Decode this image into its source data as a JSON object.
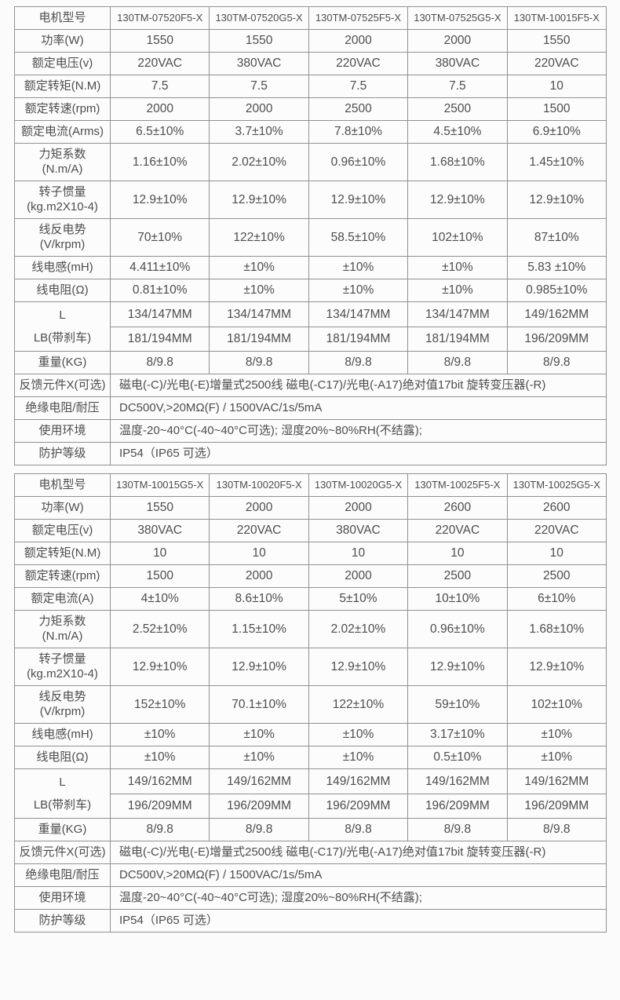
{
  "tables": [
    {
      "title": "spec-table-1",
      "header": {
        "label": "电机型号",
        "models": [
          "130TM-07520F5-X",
          "130TM-07520G5-X",
          "130TM-07525F5-X",
          "130TM-07525G5-X",
          "130TM-10015F5-X"
        ]
      },
      "rows": [
        {
          "type": "normal",
          "label": "功率(W)",
          "values": [
            "1550",
            "1550",
            "2000",
            "2000",
            "1550"
          ]
        },
        {
          "type": "normal",
          "label": "额定电压(v)",
          "values": [
            "220VAC",
            "380VAC",
            "220VAC",
            "380VAC",
            "220VAC"
          ]
        },
        {
          "type": "normal",
          "label": "额定转矩(N.M)",
          "values": [
            "7.5",
            "7.5",
            "7.5",
            "7.5",
            "10"
          ]
        },
        {
          "type": "normal",
          "label": "额定转速(rpm)",
          "values": [
            "2000",
            "2000",
            "2500",
            "2500",
            "1500"
          ]
        },
        {
          "type": "normal",
          "label": "额定电流(Arms)",
          "values": [
            "6.5±10%",
            "3.7±10%",
            "7.8±10%",
            "4.5±10%",
            "6.9±10%"
          ]
        },
        {
          "type": "normal",
          "label_lines": [
            "力矩系数",
            "(N.m/A)"
          ],
          "values": [
            "1.16±10%",
            "2.02±10%",
            "0.96±10%",
            "1.68±10%",
            "1.45±10%"
          ]
        },
        {
          "type": "normal",
          "label_lines": [
            "转子惯量",
            "(kg.m2X10-4)"
          ],
          "values": [
            "12.9±10%",
            "12.9±10%",
            "12.9±10%",
            "12.9±10%",
            "12.9±10%"
          ]
        },
        {
          "type": "normal",
          "label_lines": [
            "线反电势",
            "(V/krpm)"
          ],
          "values": [
            "70±10%",
            "122±10%",
            "58.5±10%",
            "102±10%",
            "87±10%"
          ]
        },
        {
          "type": "normal",
          "label": "线电感(mH)",
          "values": [
            "4.411±10%",
            "±10%",
            "±10%",
            "±10%",
            "5.83 ±10%"
          ]
        },
        {
          "type": "normal",
          "label": "线电阻(Ω)",
          "values": [
            "0.81±10%",
            "±10%",
            "±10%",
            "±10%",
            "0.985±10%"
          ]
        },
        {
          "type": "double",
          "label_lines": [
            "L",
            "LB(带刹车)"
          ],
          "values_top": [
            "134/147MM",
            "134/147MM",
            "134/147MM",
            "134/147MM",
            "149/162MM"
          ],
          "values_bottom": [
            "181/194MM",
            "181/194MM",
            "181/194MM",
            "181/194MM",
            "196/209MM"
          ]
        },
        {
          "type": "normal",
          "label": "重量(KG)",
          "values": [
            "8/9.8",
            "8/9.8",
            "8/9.8",
            "8/9.8",
            "8/9.8"
          ]
        },
        {
          "type": "span",
          "label": "反馈元件X(可选)",
          "value": "磁电(-C)/光电(-E)增量式2500线  磁电(-C17)/光电(-A17)绝对值17bit  旋转变压器(-R)"
        },
        {
          "type": "span",
          "label": "绝缘电阻/耐压",
          "value": "DC500V,>20MΩ(F) / 1500VAC/1s/5mA"
        },
        {
          "type": "span",
          "label": "使用环境",
          "value": "温度-20~40°C(-40~40°C可选); 湿度20%~80%RH(不结露);"
        },
        {
          "type": "span",
          "label": "防护等级",
          "value": "IP54（IP65 可选）"
        }
      ]
    },
    {
      "title": "spec-table-2",
      "header": {
        "label": "电机型号",
        "models": [
          "130TM-10015G5-X",
          "130TM-10020F5-X",
          "130TM-10020G5-X",
          "130TM-10025F5-X",
          "130TM-10025G5-X"
        ]
      },
      "rows": [
        {
          "type": "normal",
          "label": "功率(W)",
          "values": [
            "1550",
            "2000",
            "2000",
            "2600",
            "2600"
          ]
        },
        {
          "type": "normal",
          "label": "额定电压(v)",
          "values": [
            "380VAC",
            "220VAC",
            "380VAC",
            "220VAC",
            "220VAC"
          ]
        },
        {
          "type": "normal",
          "label": "额定转矩(N.M)",
          "values": [
            "10",
            "10",
            "10",
            "10",
            "10"
          ]
        },
        {
          "type": "normal",
          "label": "额定转速(rpm)",
          "values": [
            "1500",
            "2000",
            "2000",
            "2500",
            "2500"
          ]
        },
        {
          "type": "normal",
          "label": "额定电流(A)",
          "values": [
            "4±10%",
            "8.6±10%",
            "5±10%",
            "10±10%",
            "6±10%"
          ]
        },
        {
          "type": "normal",
          "label_lines": [
            "力矩系数",
            "(N.m/A)"
          ],
          "values": [
            "2.52±10%",
            "1.15±10%",
            "2.02±10%",
            "0.96±10%",
            "1.68±10%"
          ]
        },
        {
          "type": "normal",
          "label_lines": [
            "转子惯量",
            "(kg.m2X10-4)"
          ],
          "values": [
            "12.9±10%",
            "12.9±10%",
            "12.9±10%",
            "12.9±10%",
            "12.9±10%"
          ]
        },
        {
          "type": "normal",
          "label_lines": [
            "线反电势",
            "(V/krpm)"
          ],
          "values": [
            "152±10%",
            "70.1±10%",
            "122±10%",
            "59±10%",
            "102±10%"
          ]
        },
        {
          "type": "normal",
          "label": "线电感(mH)",
          "values": [
            "±10%",
            "±10%",
            "±10%",
            "3.17±10%",
            "±10%"
          ]
        },
        {
          "type": "normal",
          "label": "线电阻(Ω)",
          "values": [
            "±10%",
            "±10%",
            "±10%",
            "0.5±10%",
            "±10%"
          ]
        },
        {
          "type": "double",
          "label_lines": [
            "L",
            "LB(带刹车)"
          ],
          "values_top": [
            "149/162MM",
            "149/162MM",
            "149/162MM",
            "149/162MM",
            "149/162MM"
          ],
          "values_bottom": [
            "196/209MM",
            "196/209MM",
            "196/209MM",
            "196/209MM",
            "196/209MM"
          ]
        },
        {
          "type": "normal",
          "label": "重量(KG)",
          "values": [
            "8/9.8",
            "8/9.8",
            "8/9.8",
            "8/9.8",
            "8/9.8"
          ]
        },
        {
          "type": "span",
          "label": "反馈元件X(可选)",
          "value": "磁电(-C)/光电(-E)增量式2500线  磁电(-C17)/光电(-A17)绝对值17bit  旋转变压器(-R)"
        },
        {
          "type": "span",
          "label": "绝缘电阻/耐压",
          "value": "DC500V,>20MΩ(F) / 1500VAC/1s/5mA"
        },
        {
          "type": "span",
          "label": "使用环境",
          "value": "温度-20~40°C(-40~40°C可选); 湿度20%~80%RH(不结露);"
        },
        {
          "type": "span",
          "label": "防护等级",
          "value": "IP54（IP65 可选）"
        }
      ]
    }
  ],
  "colors": {
    "border": "#919191",
    "text": "#4d4d4d",
    "background": "#fbfbfb"
  }
}
